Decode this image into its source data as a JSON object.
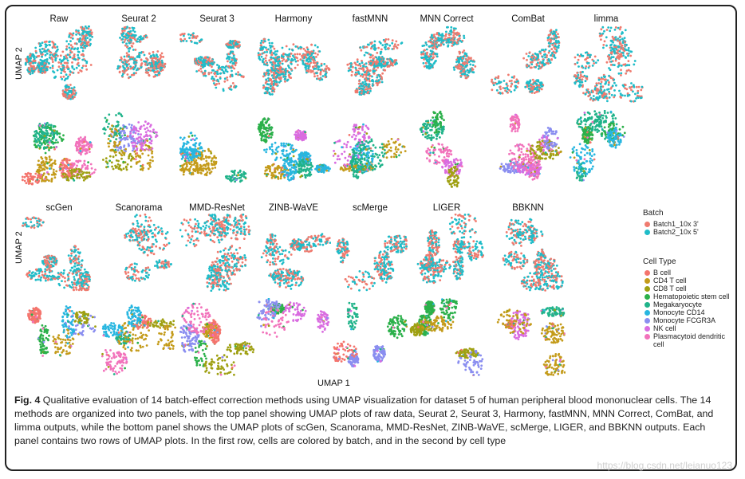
{
  "axes": {
    "x_label": "UMAP 1",
    "y_label_top": "UMAP 2",
    "y_label_bottom": "UMAP 2"
  },
  "top_panel": {
    "methods": [
      "Raw",
      "Seurat 2",
      "Seurat 3",
      "Harmony",
      "fastMNN",
      "MNN Correct",
      "ComBat",
      "limma"
    ]
  },
  "bottom_panel": {
    "methods": [
      "scGen",
      "Scanorama",
      "MMD-ResNet",
      "ZINB-WaVE",
      "scMerge",
      "LIGER",
      "BBKNN"
    ]
  },
  "legend": {
    "batch_title": "Batch",
    "batch_items": [
      {
        "label": "Batch1_10x 3'",
        "color": "#ef7b6f"
      },
      {
        "label": "Batch2_10x 5'",
        "color": "#1fbcc8"
      }
    ],
    "celltype_title": "Cell Type",
    "celltype_items": [
      {
        "label": "B cell",
        "color": "#f4746d"
      },
      {
        "label": "CD4 T cell",
        "color": "#c49b1a"
      },
      {
        "label": "CD8 T cell",
        "color": "#9fa012"
      },
      {
        "label": "Hematopoietic stem cell",
        "color": "#2bb04a"
      },
      {
        "label": "Megakaryocyte",
        "color": "#20b38a"
      },
      {
        "label": "Monocyte CD14",
        "color": "#27b6e0"
      },
      {
        "label": "Monocyte FCGR3A",
        "color": "#8a8ef0"
      },
      {
        "label": "NK cell",
        "color": "#d96ce0"
      },
      {
        "label": "Plasmacytoid dendritic cell",
        "color": "#f272bb"
      }
    ]
  },
  "caption": {
    "label": "Fig. 4",
    "text": " Qualitative evaluation of 14 batch-effect correction methods using UMAP visualization for dataset 5 of human peripheral blood mononuclear cells. The 14 methods are organized into two panels, with the top panel showing UMAP plots of raw data, Seurat 2, Seurat 3, Harmony, fastMNN, MNN Correct, ComBat, and limma outputs, while the bottom panel shows the UMAP plots of scGen, Scanorama, MMD-ResNet, ZINB-WaVE, scMerge, LIGER, and BBKNN outputs. Each panel contains two rows of UMAP plots. In the first row, cells are colored by batch, and in the second by cell type"
  },
  "watermark": "https://blog.csdn.net/leianuo123"
}
